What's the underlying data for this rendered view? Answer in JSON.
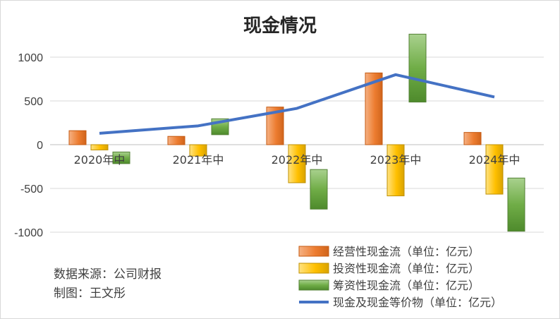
{
  "chart_data": {
    "type": "bar",
    "title": "现金情况",
    "xlabel": "",
    "ylabel": "",
    "ylim": [
      -1000,
      1000
    ],
    "yticks": [
      1000,
      500,
      0,
      -500,
      -1000
    ],
    "grid": true,
    "legend_position": "bottom-right",
    "categories": [
      "2020年中",
      "2021年中",
      "2022年中",
      "2023年中",
      "2024年中"
    ],
    "series": [
      {
        "name": "经营性现金流（单位：亿元）",
        "kind": "bar",
        "color": "#ed7d31",
        "values": [
          160,
          95,
          430,
          820,
          140
        ]
      },
      {
        "name": "投资性现金流（单位：亿元）",
        "kind": "bar",
        "color": "#ffc000",
        "values": [
          -60,
          -130,
          -435,
          -585,
          -565
        ]
      },
      {
        "name": "筹资性现金流（单位：亿元）",
        "kind": "bar",
        "color": "#70ad47",
        "values": [
          -150,
          205,
          -510,
          875,
          -685
        ]
      },
      {
        "name": "现金及现金等价物（单位：亿元）",
        "kind": "line",
        "color": "#4472c4",
        "values": [
          130,
          215,
          415,
          800,
          545
        ]
      }
    ]
  },
  "notes": {
    "source": "数据来源：公司财报",
    "author": "制图：王文彤"
  }
}
